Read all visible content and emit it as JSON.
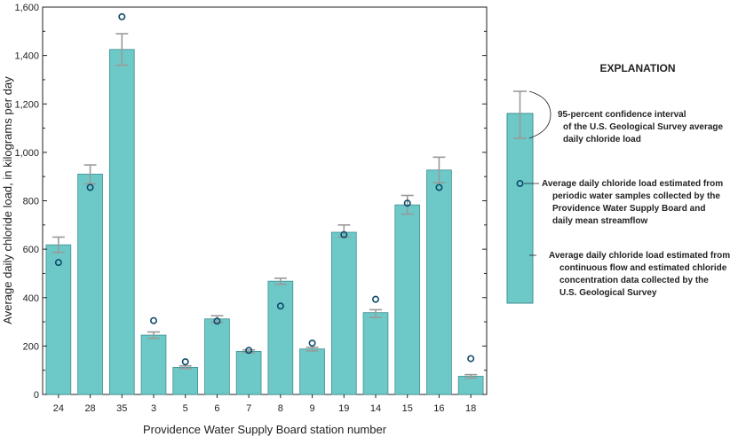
{
  "colors": {
    "bar_fill": "#6cc9c8",
    "bar_stroke": "#3f8e8d",
    "error_bar": "#9a9a9a",
    "marker_stroke": "#0d4a6b",
    "axis": "#222222"
  },
  "chart_data": {
    "type": "bar",
    "xlabel": "Providence Water Supply Board station number",
    "ylabel": "Average daily chloride load, in kilograms per day",
    "ylim": [
      0,
      1600
    ],
    "yticks": [
      0,
      200,
      400,
      600,
      800,
      1000,
      1200,
      1400,
      1600
    ],
    "ytick_labels": [
      "0",
      "200",
      "400",
      "600",
      "800",
      "1,000",
      "1,200",
      "1,400",
      "1,600"
    ],
    "grid": false,
    "categories": [
      "24",
      "28",
      "35",
      "3",
      "5",
      "6",
      "7",
      "8",
      "9",
      "19",
      "14",
      "15",
      "16",
      "18"
    ],
    "series": [
      {
        "name": "Average daily chloride load estimated from continuous flow and estimated chloride concentration data collected by the U.S. Geological Survey",
        "type": "bar",
        "values": [
          618,
          910,
          1425,
          245,
          112,
          312,
          178,
          468,
          188,
          670,
          338,
          783,
          927,
          75
        ],
        "ci_low": [
          587,
          870,
          1360,
          232,
          107,
          298,
          172,
          455,
          180,
          650,
          318,
          745,
          875,
          68
        ],
        "ci_high": [
          650,
          948,
          1490,
          258,
          118,
          325,
          184,
          480,
          195,
          700,
          350,
          822,
          980,
          82
        ]
      },
      {
        "name": "Average daily chloride load estimated from periodic water samples collected by the Providence Water Supply Board and daily mean streamflow",
        "type": "scatter",
        "values": [
          545,
          855,
          1560,
          305,
          135,
          303,
          182,
          365,
          212,
          660,
          393,
          790,
          855,
          148
        ]
      }
    ],
    "legend": {
      "title": "EXPLANATION",
      "position": "right",
      "items": [
        {
          "line1": "95-percent confidence interval",
          "line2": "of the U.S. Geological Survey average",
          "line3": "daily chloride load"
        },
        {
          "line1": "Average daily chloride load estimated from",
          "line2": "periodic water samples collected by the",
          "line3": "Providence Water Supply Board and",
          "line4": "daily mean streamflow"
        },
        {
          "line1": "Average daily chloride load estimated from",
          "line2": "continuous flow and estimated chloride",
          "line3": "concentration data collected by the",
          "line4": "U.S. Geological Survey"
        }
      ]
    }
  }
}
